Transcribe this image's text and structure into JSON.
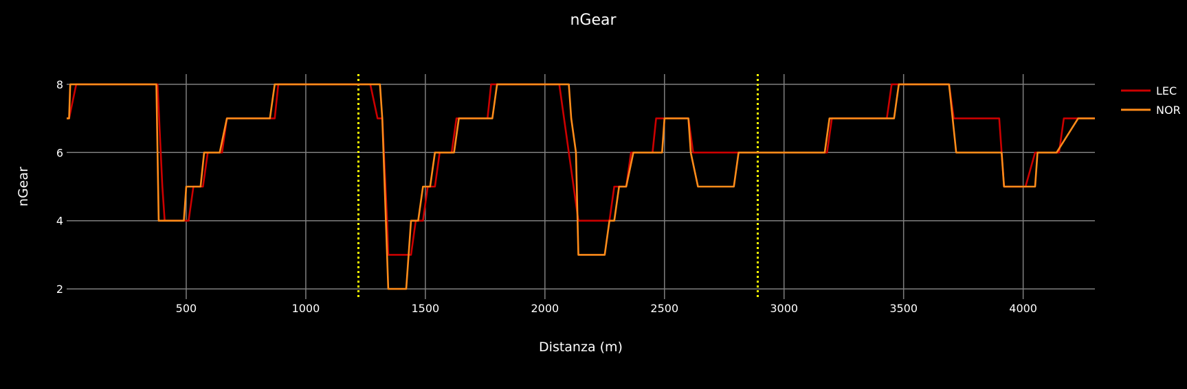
{
  "chart_data": {
    "type": "line",
    "title": "nGear",
    "xlabel": "Distanza (m)",
    "ylabel": "nGear",
    "xlim": [
      0,
      4300
    ],
    "ylim": [
      1.7,
      8.3
    ],
    "xticks": [
      500,
      1000,
      1500,
      2000,
      2500,
      3000,
      3500,
      4000
    ],
    "yticks": [
      2,
      4,
      6,
      8
    ],
    "grid": true,
    "legend_position": "right",
    "background": "#000000",
    "grid_color": "#808080",
    "vlines": [
      {
        "x": 1220,
        "color": "#ffff00",
        "style": "dotted"
      },
      {
        "x": 2890,
        "color": "#ffff00",
        "style": "dotted"
      }
    ],
    "series": [
      {
        "name": "LEC",
        "color": "#cc0000",
        "points": [
          [
            0,
            7
          ],
          [
            10,
            7
          ],
          [
            40,
            8
          ],
          [
            380,
            8
          ],
          [
            400,
            5
          ],
          [
            410,
            4
          ],
          [
            510,
            4
          ],
          [
            530,
            5
          ],
          [
            570,
            5
          ],
          [
            590,
            6
          ],
          [
            650,
            6
          ],
          [
            670,
            7
          ],
          [
            870,
            7
          ],
          [
            885,
            8
          ],
          [
            1270,
            8
          ],
          [
            1300,
            7
          ],
          [
            1320,
            7
          ],
          [
            1340,
            4
          ],
          [
            1345,
            3
          ],
          [
            1440,
            3
          ],
          [
            1460,
            4
          ],
          [
            1490,
            4
          ],
          [
            1510,
            5
          ],
          [
            1540,
            5
          ],
          [
            1560,
            6
          ],
          [
            1610,
            6
          ],
          [
            1630,
            7
          ],
          [
            1760,
            7
          ],
          [
            1775,
            8
          ],
          [
            2060,
            8
          ],
          [
            2100,
            6
          ],
          [
            2140,
            4
          ],
          [
            2270,
            4
          ],
          [
            2290,
            5
          ],
          [
            2340,
            5
          ],
          [
            2360,
            6
          ],
          [
            2450,
            6
          ],
          [
            2465,
            7
          ],
          [
            2510,
            7
          ],
          [
            2520,
            7
          ],
          [
            2600,
            7
          ],
          [
            2620,
            6
          ],
          [
            2810,
            6
          ],
          [
            2820,
            6
          ],
          [
            3180,
            6
          ],
          [
            3200,
            7
          ],
          [
            3430,
            7
          ],
          [
            3450,
            8
          ],
          [
            3690,
            8
          ],
          [
            3710,
            7
          ],
          [
            3900,
            7
          ],
          [
            3920,
            5
          ],
          [
            4010,
            5
          ],
          [
            4050,
            6
          ],
          [
            4150,
            6
          ],
          [
            4170,
            7
          ],
          [
            4300,
            7
          ]
        ]
      },
      {
        "name": "NOR",
        "color": "#ff8c1a",
        "points": [
          [
            0,
            7
          ],
          [
            10,
            7
          ],
          [
            15,
            8
          ],
          [
            360,
            8
          ],
          [
            375,
            8
          ],
          [
            385,
            4
          ],
          [
            400,
            4
          ],
          [
            490,
            4
          ],
          [
            500,
            5
          ],
          [
            560,
            5
          ],
          [
            575,
            6
          ],
          [
            630,
            6
          ],
          [
            640,
            6
          ],
          [
            670,
            7
          ],
          [
            850,
            7
          ],
          [
            870,
            8
          ],
          [
            1310,
            8
          ],
          [
            1320,
            7
          ],
          [
            1345,
            2
          ],
          [
            1420,
            2
          ],
          [
            1440,
            4
          ],
          [
            1470,
            4
          ],
          [
            1490,
            5
          ],
          [
            1520,
            5
          ],
          [
            1540,
            6
          ],
          [
            1620,
            6
          ],
          [
            1640,
            7
          ],
          [
            1780,
            7
          ],
          [
            1800,
            8
          ],
          [
            2100,
            8
          ],
          [
            2110,
            7
          ],
          [
            2130,
            6
          ],
          [
            2140,
            3
          ],
          [
            2250,
            3
          ],
          [
            2270,
            4
          ],
          [
            2290,
            4
          ],
          [
            2310,
            5
          ],
          [
            2340,
            5
          ],
          [
            2370,
            6
          ],
          [
            2490,
            6
          ],
          [
            2500,
            7
          ],
          [
            2600,
            7
          ],
          [
            2610,
            6
          ],
          [
            2640,
            5
          ],
          [
            2790,
            5
          ],
          [
            2810,
            6
          ],
          [
            3170,
            6
          ],
          [
            3190,
            7
          ],
          [
            3460,
            7
          ],
          [
            3480,
            8
          ],
          [
            3690,
            8
          ],
          [
            3720,
            6
          ],
          [
            3910,
            6
          ],
          [
            3920,
            5
          ],
          [
            4050,
            5
          ],
          [
            4060,
            6
          ],
          [
            4140,
            6
          ],
          [
            4230,
            7
          ],
          [
            4300,
            7
          ]
        ]
      }
    ]
  }
}
